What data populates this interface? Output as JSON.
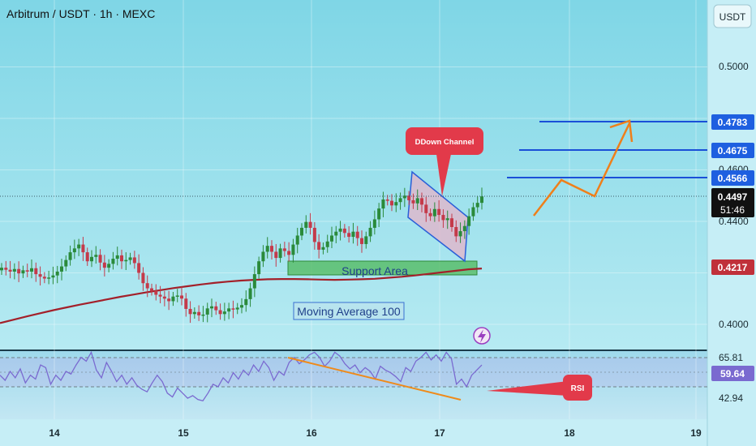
{
  "header": {
    "title": "Arbitrum / USDT · 1h · MEXC",
    "currency_button": "USDT"
  },
  "colors": {
    "background_top": "#7fd6e6",
    "background_bottom": "#b6eaf2",
    "candle_up": "#2a8a3a",
    "candle_down": "#c43a4a",
    "ma100": "#a3202a",
    "price_level_line": "#1a4fd8",
    "support_zone": "#4fb85a",
    "channel_fill": "#e6b3c8",
    "projection": "#ef7f1a",
    "rsi_line": "#7a6ad0",
    "callout": "#e23a4a",
    "price_label": "#1e5fe0",
    "current_price_label": "#111111",
    "ma_price_label": "#c0303a"
  },
  "icons": {
    "lightning": "lightning-icon"
  },
  "annotations": {
    "support_area": "Support Area",
    "moving_average": "Moving Average 100",
    "down_channel": "DDown Channel",
    "rsi_callout": "RSI"
  },
  "price_axis": {
    "ticks": [
      "0.5000",
      "0.4600",
      "0.4400",
      "0.4000"
    ],
    "level_labels": [
      "0.4783",
      "0.4675",
      "0.4566"
    ],
    "current_price": "0.4497",
    "countdown": "51:46",
    "ma_price": "0.4217"
  },
  "rsi_axis": {
    "ticks": [
      "65.81",
      "42.94"
    ],
    "current": "59.64"
  },
  "time_axis": {
    "labels": [
      "14",
      "15",
      "16",
      "17",
      "18",
      "19"
    ]
  },
  "chart_data": {
    "type": "candlestick",
    "title": "Arbitrum / USDT · 1h · MEXC",
    "x_categories": [
      "14",
      "15",
      "16",
      "17",
      "18",
      "19"
    ],
    "ylim": [
      0.3935,
      0.5125
    ],
    "price_levels": [
      0.4783,
      0.4675,
      0.4566
    ],
    "current_price": 0.4497,
    "ma100_last": 0.4217,
    "close_series": [
      0.422,
      0.4212,
      0.4205,
      0.4215,
      0.4198,
      0.421,
      0.4205,
      0.4218,
      0.4195,
      0.4185,
      0.4178,
      0.4182,
      0.419,
      0.4205,
      0.4225,
      0.425,
      0.428,
      0.4295,
      0.431,
      0.428,
      0.4245,
      0.4262,
      0.427,
      0.424,
      0.422,
      0.4235,
      0.4255,
      0.4268,
      0.4245,
      0.425,
      0.426,
      0.4238,
      0.42,
      0.416,
      0.414,
      0.413,
      0.4115,
      0.4108,
      0.41,
      0.409,
      0.4108,
      0.4112,
      0.41,
      0.406,
      0.404,
      0.4048,
      0.4035,
      0.4038,
      0.4062,
      0.407,
      0.4055,
      0.404,
      0.405,
      0.4062,
      0.4058,
      0.4065,
      0.4075,
      0.4098,
      0.414,
      0.4195,
      0.4245,
      0.4282,
      0.4305,
      0.4282,
      0.4258,
      0.4295,
      0.4285,
      0.427,
      0.431,
      0.4345,
      0.4375,
      0.4398,
      0.4375,
      0.432,
      0.429,
      0.43,
      0.4322,
      0.4345,
      0.436,
      0.4372,
      0.4355,
      0.434,
      0.436,
      0.4335,
      0.4312,
      0.4342,
      0.4375,
      0.4408,
      0.445,
      0.4485,
      0.448,
      0.4462,
      0.4475,
      0.449,
      0.45,
      0.4482,
      0.447,
      0.449,
      0.4465,
      0.4432,
      0.442,
      0.4448,
      0.4425,
      0.4405,
      0.4412,
      0.4378,
      0.4342,
      0.4362,
      0.4382,
      0.442,
      0.4455,
      0.4472,
      0.4497
    ],
    "ma100": [
      0.4005,
      0.4018,
      0.4031,
      0.4043,
      0.4055,
      0.4066,
      0.4077,
      0.4087,
      0.4097,
      0.4107,
      0.4116,
      0.4125,
      0.4133,
      0.4141,
      0.4148,
      0.4155,
      0.4161,
      0.4166,
      0.417,
      0.4173,
      0.4175,
      0.4176,
      0.4176,
      0.4175,
      0.4174,
      0.4173,
      0.4174,
      0.4175,
      0.4177,
      0.4181,
      0.4185,
      0.419,
      0.4196,
      0.4202,
      0.4208,
      0.4214,
      0.4217
    ],
    "rsi": {
      "ylim": [
        27,
        80
      ],
      "ticks": [
        65.81,
        42.94
      ],
      "current": 59.64,
      "values": [
        52,
        48,
        55,
        50,
        57,
        46,
        52,
        49,
        60,
        58,
        45,
        52,
        48,
        55,
        53,
        60,
        66,
        63,
        70,
        56,
        50,
        62,
        55,
        47,
        52,
        45,
        50,
        44,
        41,
        39,
        46,
        52,
        47,
        38,
        35,
        42,
        38,
        34,
        36,
        33,
        32,
        38,
        45,
        43,
        50,
        46,
        54,
        49,
        56,
        52,
        60,
        55,
        63,
        58,
        48,
        55,
        52,
        62,
        66,
        61,
        64,
        68,
        70,
        66,
        59,
        63,
        70,
        67,
        61,
        57,
        60,
        54,
        58,
        55,
        49,
        59,
        56,
        54,
        51,
        47,
        58,
        55,
        63,
        66,
        70,
        64,
        68,
        63,
        70,
        65,
        45,
        49,
        43,
        52,
        56,
        60
      ]
    }
  }
}
